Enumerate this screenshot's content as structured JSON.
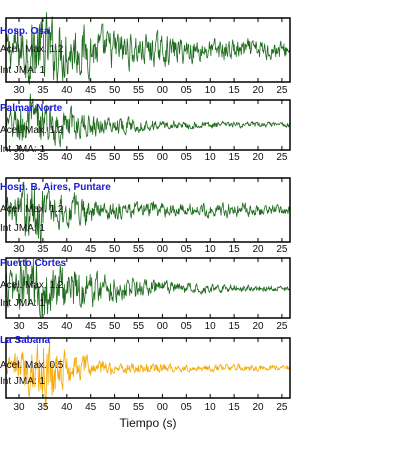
{
  "chart_data": {
    "type": "line",
    "xlabel": "Tiempo (s)",
    "x_tick_labels": [
      "30",
      "35",
      "40",
      "45",
      "50",
      "55",
      "00",
      "05",
      "10",
      "15",
      "20",
      "25"
    ],
    "accel_prefix": "Acel. Max.",
    "jma_prefix": "Int JMA:",
    "panels": [
      {
        "station": "Hosp. Osa",
        "accel_max": "1.2",
        "jma": "1",
        "color": "#1e6b1e",
        "envelope": {
          "x_s": [
            0,
            6,
            10,
            20,
            35,
            55,
            58
          ],
          "amplitude": [
            0.45,
            0.9,
            0.75,
            0.5,
            0.32,
            0.22,
            0.2
          ]
        }
      },
      {
        "station": "Palmar Norte",
        "accel_max": "1.2",
        "jma": "1",
        "color": "#1e6b1e",
        "envelope": {
          "x_s": [
            0,
            4,
            8,
            20,
            35,
            58
          ],
          "amplitude": [
            0.3,
            0.95,
            0.65,
            0.28,
            0.12,
            0.08
          ]
        }
      },
      {
        "station": "Hosp. B. Aires, Puntare",
        "accel_max": "1.2",
        "jma": "1",
        "color": "#1e6b1e",
        "envelope": {
          "x_s": [
            0,
            6,
            9,
            20,
            35,
            45,
            58
          ],
          "amplitude": [
            0.25,
            0.85,
            0.5,
            0.25,
            0.15,
            0.18,
            0.12
          ]
        }
      },
      {
        "station": "Puerto Cortes",
        "accel_max": "1.2",
        "jma": "1",
        "color": "#1e6b1e",
        "envelope": {
          "x_s": [
            0,
            5,
            8,
            20,
            35,
            58
          ],
          "amplitude": [
            0.45,
            0.95,
            0.8,
            0.4,
            0.15,
            0.07
          ]
        }
      },
      {
        "station": "La Sabana",
        "accel_max": "0.5",
        "jma": "1",
        "color": "#f5a800",
        "envelope": {
          "x_s": [
            0,
            5,
            8,
            11,
            20,
            35,
            58
          ],
          "amplitude": [
            0.2,
            0.7,
            0.98,
            0.5,
            0.2,
            0.1,
            0.08
          ]
        }
      }
    ]
  }
}
